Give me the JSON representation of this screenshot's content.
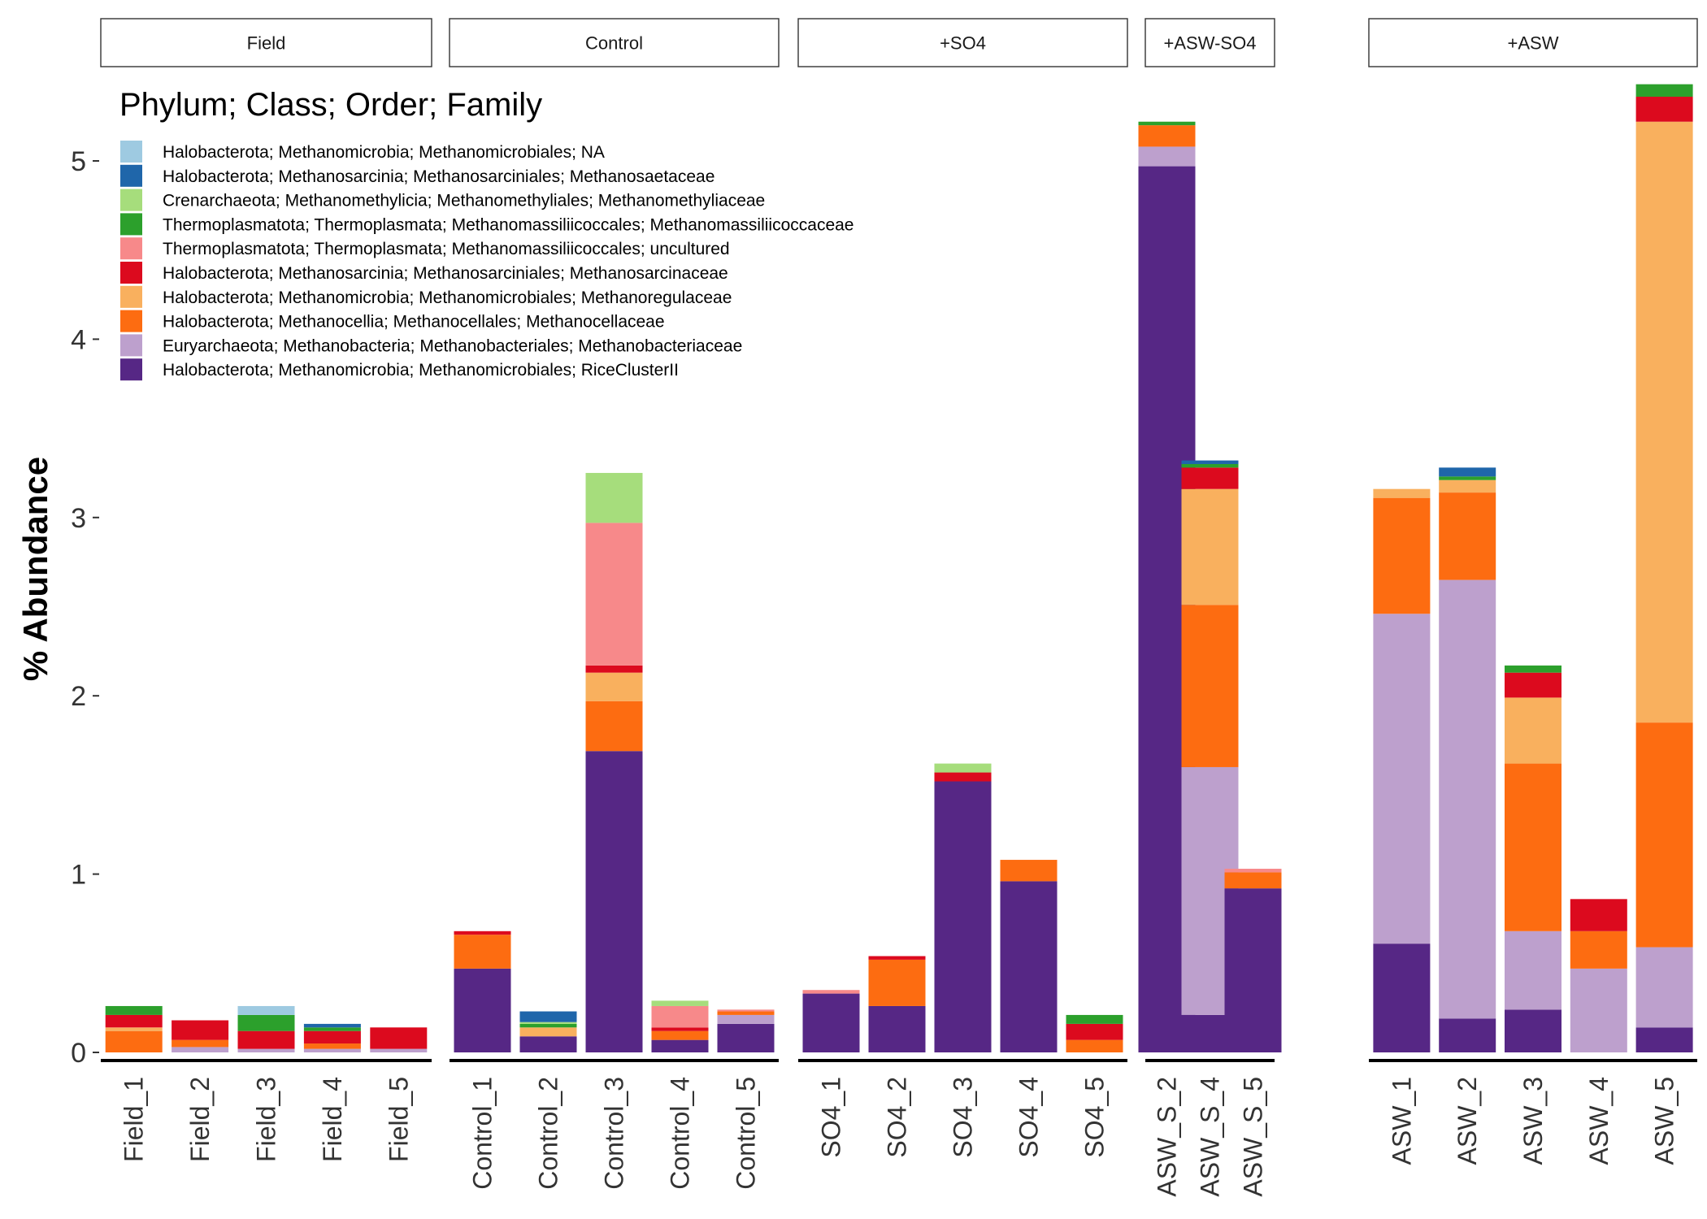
{
  "chart_data": {
    "type": "bar",
    "stacked": true,
    "faceted": true,
    "ylabel": "% Abundance",
    "xlabel": "",
    "ylim": [
      0,
      5.4
    ],
    "y_ticks": [
      0,
      1,
      2,
      3,
      4,
      5
    ],
    "grid": false,
    "legend": {
      "title": "Phylum; Class; Order; Family",
      "placement": "top-left inside",
      "entries": [
        {
          "name": "Halobacterota; Methanomicrobia; Methanomicrobiales; NA",
          "color": "#9ecae1"
        },
        {
          "name": "Halobacterota; Methanosarcinia; Methanosarciniales; Methanosaetaceae",
          "color": "#1f66aa"
        },
        {
          "name": "Crenarchaeota; Methanomethylicia; Methanomethyliales; Methanomethyliaceae",
          "color": "#a6dd7c"
        },
        {
          "name": "Thermoplasmatota; Thermoplasmata; Methanomassiliicoccales; Methanomassiliicoccaceae",
          "color": "#2ca02c"
        },
        {
          "name": "Thermoplasmatota; Thermoplasmata; Methanomassiliicoccales; uncultured",
          "color": "#f7898a"
        },
        {
          "name": "Halobacterota; Methanosarcinia; Methanosarciniales; Methanosarcinaceae",
          "color": "#dc0a1e"
        },
        {
          "name": "Halobacterota; Methanomicrobia; Methanomicrobiales; Methanoregulaceae",
          "color": "#f9b05e"
        },
        {
          "name": "Halobacterota; Methanocellia; Methanocellales; Methanocellaceae",
          "color": "#fd6c11"
        },
        {
          "name": "Euryarchaeota; Methanobacteria; Methanobacteriales; Methanobacteriaceae",
          "color": "#bda0cd"
        },
        {
          "name": "Halobacterota; Methanomicrobia; Methanomicrobiales; RiceClusterII",
          "color": "#562785"
        }
      ]
    },
    "stack_order_bottom_to_top": [
      "Halobacterota; Methanomicrobia; Methanomicrobiales; RiceClusterII",
      "Euryarchaeota; Methanobacteria; Methanobacteriales; Methanobacteriaceae",
      "Halobacterota; Methanocellia; Methanocellales; Methanocellaceae",
      "Halobacterota; Methanomicrobia; Methanomicrobiales; Methanoregulaceae",
      "Halobacterota; Methanosarcinia; Methanosarciniales; Methanosarcinaceae",
      "Thermoplasmatota; Thermoplasmata; Methanomassiliicoccales; uncultured",
      "Thermoplasmatota; Thermoplasmata; Methanomassiliicoccales; Methanomassiliicoccaceae",
      "Crenarchaeota; Methanomethylicia; Methanomethyliales; Methanomethyliaceae",
      "Halobacterota; Methanosarcinia; Methanosarciniales; Methanosaetaceae",
      "Halobacterota; Methanomicrobia; Methanomicrobiales; NA"
    ],
    "facets": [
      {
        "label": "Field",
        "samples": [
          {
            "name": "Field_1",
            "values": [
              0,
              0,
              0.12,
              0.02,
              0.07,
              0,
              0.05,
              0,
              0,
              0
            ]
          },
          {
            "name": "Field_2",
            "values": [
              0,
              0.03,
              0.04,
              0,
              0.11,
              0,
              0,
              0,
              0,
              0
            ]
          },
          {
            "name": "Field_3",
            "values": [
              0,
              0.02,
              0,
              0,
              0.1,
              0,
              0.09,
              0,
              0,
              0.05
            ]
          },
          {
            "name": "Field_4",
            "values": [
              0,
              0.02,
              0.03,
              0,
              0.07,
              0,
              0.02,
              0,
              0.02,
              0
            ]
          },
          {
            "name": "Field_5",
            "values": [
              0,
              0.02,
              0,
              0,
              0.12,
              0,
              0,
              0,
              0,
              0
            ]
          }
        ]
      },
      {
        "label": "Control",
        "samples": [
          {
            "name": "Control_1",
            "values": [
              0.47,
              0,
              0.19,
              0,
              0.02,
              0,
              0,
              0,
              0,
              0
            ]
          },
          {
            "name": "Control_2",
            "values": [
              0.09,
              0,
              0,
              0.05,
              0,
              0,
              0.02,
              0.01,
              0.06,
              0
            ]
          },
          {
            "name": "Control_3",
            "values": [
              1.69,
              0,
              0.28,
              0.16,
              0.04,
              0.8,
              0,
              0.28,
              0,
              0
            ]
          },
          {
            "name": "Control_4",
            "values": [
              0.07,
              0,
              0.05,
              0,
              0.02,
              0.12,
              0,
              0.03,
              0,
              0
            ]
          },
          {
            "name": "Control_5",
            "values": [
              0.16,
              0.05,
              0.02,
              0,
              0,
              0.01,
              0,
              0,
              0,
              0
            ]
          }
        ]
      },
      {
        "label": "+SO4",
        "samples": [
          {
            "name": "SO4_1",
            "values": [
              0.33,
              0,
              0,
              0,
              0,
              0.02,
              0,
              0,
              0,
              0
            ]
          },
          {
            "name": "SO4_2",
            "values": [
              0.26,
              0,
              0.26,
              0,
              0.02,
              0,
              0,
              0,
              0,
              0
            ]
          },
          {
            "name": "SO4_3",
            "values": [
              1.52,
              0,
              0,
              0,
              0.05,
              0,
              0,
              0.05,
              0,
              0
            ]
          },
          {
            "name": "SO4_4",
            "values": [
              0.96,
              0,
              0.12,
              0,
              0,
              0,
              0,
              0,
              0,
              0
            ]
          },
          {
            "name": "SO4_5",
            "values": [
              0,
              0,
              0.07,
              0,
              0.09,
              0,
              0.05,
              0,
              0,
              0
            ]
          }
        ]
      },
      {
        "label": "+ASW-SO4",
        "samples": [
          {
            "name": "ASW_S_2",
            "values": [
              4.97,
              0.11,
              0.12,
              0,
              0,
              0,
              0.02,
              0,
              0,
              0
            ]
          },
          {
            "name": "ASW_S_4",
            "values": [
              0.21,
              1.39,
              0.91,
              0.65,
              0.12,
              0,
              0.02,
              0,
              0.02,
              0
            ]
          },
          {
            "name": "ASW_S_5",
            "values": [
              0.92,
              0,
              0.09,
              0,
              0,
              0.02,
              0,
              0,
              0,
              0
            ]
          }
        ]
      },
      {
        "label": "+ASW",
        "samples": [
          {
            "name": "ASW_1",
            "values": [
              0.61,
              1.85,
              0.65,
              0.05,
              0,
              0,
              0,
              0,
              0,
              0
            ]
          },
          {
            "name": "ASW_2",
            "values": [
              0.19,
              2.46,
              0.49,
              0.07,
              0,
              0,
              0.02,
              0,
              0.05,
              0
            ]
          },
          {
            "name": "ASW_3",
            "values": [
              0.24,
              0.44,
              0.94,
              0.37,
              0.14,
              0,
              0.04,
              0,
              0,
              0
            ]
          },
          {
            "name": "ASW_4",
            "values": [
              0,
              0.47,
              0.21,
              0,
              0.18,
              0,
              0,
              0,
              0,
              0
            ]
          },
          {
            "name": "ASW_5",
            "values": [
              0.14,
              0.45,
              1.26,
              3.37,
              0.14,
              0,
              0.07,
              0,
              0,
              0
            ]
          }
        ]
      }
    ]
  }
}
